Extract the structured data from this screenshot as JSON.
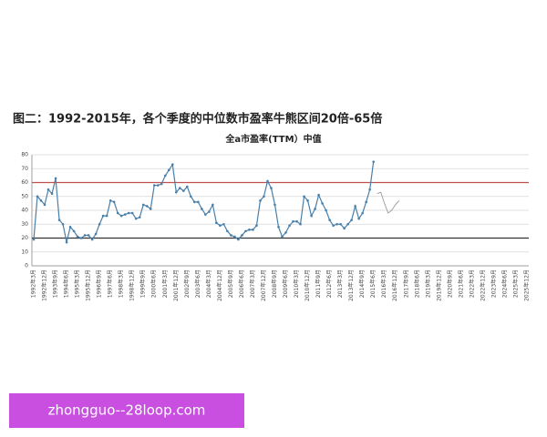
{
  "header": {
    "title": "图二：1992-2015年，各个季度的中位数市盈率牛熊区间20倍-65倍"
  },
  "watermark": "zhongguo--28loop.com",
  "chart_data": {
    "type": "line",
    "title": "全a市盈率(TTM）中值",
    "categories": [
      "1992年3月",
      null,
      null,
      "1992年12月",
      null,
      null,
      "1993年9月",
      null,
      null,
      "1994年6月",
      null,
      null,
      "1995年3月",
      null,
      null,
      "1995年12月",
      null,
      null,
      "1996年9月",
      null,
      null,
      "1997年6月",
      null,
      null,
      "1998年3月",
      null,
      null,
      "1998年12月",
      null,
      null,
      "1999年9月",
      null,
      null,
      "2000年6月",
      null,
      null,
      "2001年3月",
      null,
      null,
      "2001年12月",
      null,
      null,
      "2002年9月",
      null,
      null,
      "2003年6月",
      null,
      null,
      "2004年3月",
      null,
      null,
      "2004年12月",
      null,
      null,
      "2005年9月",
      null,
      null,
      "2006年6月",
      null,
      null,
      "2007年3月",
      null,
      null,
      "2007年12月",
      null,
      null,
      "2008年9月",
      null,
      null,
      "2009年6月",
      null,
      null,
      "2010年3月",
      null,
      null,
      "2010年12月",
      null,
      null,
      "2011年9月",
      null,
      null,
      "2012年6月",
      null,
      null,
      "2013年3月",
      null,
      null,
      "2013年12月",
      null,
      null,
      "2014年9月",
      null,
      null,
      "2015年6月",
      null,
      null,
      "2016年3月",
      null,
      null,
      "2016年12月",
      null,
      null,
      "2017年9月",
      null,
      null,
      "2018年6月",
      null,
      null,
      "2019年3月",
      null,
      null,
      "2019年12月",
      null,
      null,
      "2020年9月",
      null,
      null,
      "2021年6月",
      null,
      null,
      "2022年3月",
      null,
      null,
      "2022年12月",
      null,
      null,
      "2023年9月",
      null,
      null,
      "2024年6月",
      null,
      null,
      "2025年3月",
      null,
      null,
      "2025年12月"
    ],
    "series": [
      {
        "color": "#4a7fa8",
        "markers": true,
        "values": [
          19,
          50,
          47,
          44,
          55,
          52,
          63,
          33,
          30,
          17,
          28,
          25,
          21,
          20,
          22,
          22,
          19,
          23,
          30,
          36,
          36,
          47,
          46,
          38,
          36,
          37,
          38,
          38,
          34,
          35,
          44,
          43,
          41,
          58,
          58,
          59,
          65,
          69,
          73,
          53,
          56,
          54,
          57,
          50,
          46,
          46,
          41,
          37,
          39,
          44,
          31,
          29,
          30,
          25,
          22,
          21,
          19,
          22,
          25,
          26,
          26,
          29,
          47,
          50,
          61,
          56,
          44,
          28,
          21,
          24,
          29,
          32,
          32,
          30,
          50,
          47,
          36,
          41,
          51,
          45,
          40,
          33,
          29,
          30,
          30,
          27,
          30,
          33,
          43,
          34,
          38,
          46,
          55,
          75,
          null,
          null,
          null,
          null,
          null,
          null,
          null,
          null,
          null,
          null,
          null,
          null,
          null,
          null,
          null,
          null,
          null,
          null,
          null,
          null,
          null,
          null,
          null,
          null,
          null,
          null,
          null,
          null,
          null,
          null,
          null,
          null,
          null,
          null,
          null,
          null,
          null,
          null,
          null,
          null,
          null,
          null
        ]
      },
      {
        "color": "#9a9a9a",
        "markers": false,
        "values": [
          null,
          null,
          null,
          null,
          null,
          null,
          null,
          null,
          null,
          null,
          null,
          null,
          null,
          null,
          null,
          null,
          null,
          null,
          null,
          null,
          null,
          null,
          null,
          null,
          null,
          null,
          null,
          null,
          null,
          null,
          null,
          null,
          null,
          null,
          null,
          null,
          null,
          null,
          null,
          null,
          null,
          null,
          null,
          null,
          null,
          null,
          null,
          null,
          null,
          null,
          null,
          null,
          null,
          null,
          null,
          null,
          null,
          null,
          null,
          null,
          null,
          null,
          null,
          null,
          null,
          null,
          null,
          null,
          null,
          null,
          null,
          null,
          null,
          null,
          null,
          null,
          null,
          null,
          null,
          null,
          null,
          null,
          null,
          null,
          null,
          null,
          null,
          null,
          null,
          null,
          null,
          null,
          null,
          null,
          52,
          53,
          45,
          38,
          40,
          44,
          47,
          null,
          null,
          null,
          null,
          null,
          null,
          null,
          null,
          null,
          null,
          null,
          null,
          null,
          null,
          null,
          null,
          null,
          null,
          null,
          null,
          null,
          null,
          null,
          null,
          null,
          null,
          null,
          null,
          null,
          null,
          null,
          null,
          null,
          null,
          null
        ]
      }
    ],
    "reference_lines": [
      {
        "value": 60,
        "color": "#c0504d"
      },
      {
        "value": 20,
        "color": "#333333"
      }
    ],
    "ylim": [
      0,
      80
    ],
    "yticks": [
      0,
      10,
      20,
      30,
      40,
      50,
      60,
      70,
      80
    ],
    "grid": true
  }
}
